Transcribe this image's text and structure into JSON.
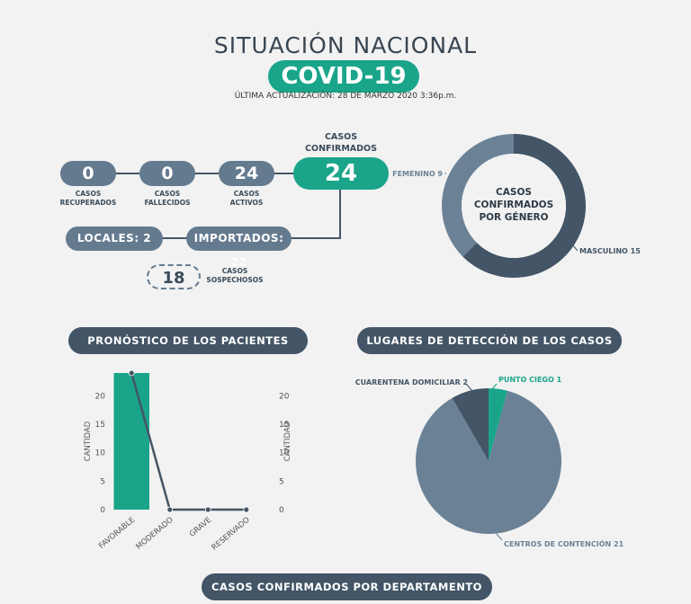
{
  "header": {
    "title": "SITUACIÓN NACIONAL",
    "badge": "COVID-19",
    "updated": "ÚLTIMA ACTUALIZACIÓN: 28 DE MARZO 2020 3:36p.m."
  },
  "stats": {
    "recuperados": {
      "value": "0",
      "label_1": "CASOS",
      "label_2": "RECUPERADOS"
    },
    "fallecidos": {
      "value": "0",
      "label_1": "CASOS",
      "label_2": "FALLECIDOS"
    },
    "activos": {
      "value": "24",
      "label_1": "CASOS",
      "label_2": "ACTIVOS"
    },
    "confirmados": {
      "value": "24",
      "label_1": "CASOS",
      "label_2": "CONFIRMADOS"
    },
    "locales": "LOCALES: 2",
    "importados": "IMPORTADOS: 22",
    "sospechosos": {
      "value": "18",
      "label_1": "CASOS",
      "label_2": "SOSPECHOSOS"
    }
  },
  "sections": {
    "pronostico": "PRONÓSTICO DE LOS PACIENTES",
    "lugares": "LUGARES DE DETECCIÓN DE LOS CASOS",
    "departamento": "CASOS CONFIRMADOS POR DEPARTAMENTO"
  },
  "colors": {
    "teal": "#1aa58a",
    "slate": "#647a8e",
    "dark": "#435566"
  },
  "chart_data": [
    {
      "type": "pie",
      "variant": "donut",
      "center_label": [
        "CASOS",
        "CONFIRMADOS",
        "POR GÉNERO"
      ],
      "labels": [
        "FEMENINO",
        "MASCULINO"
      ],
      "values": [
        9,
        15
      ],
      "slice_labels": [
        "FEMENINO 9",
        "MASCULINO 15"
      ],
      "colors": [
        "#6b8296",
        "#435566"
      ]
    },
    {
      "type": "bar",
      "combo_line": true,
      "categories": [
        "FAVORABLE",
        "MODERADO",
        "GRAVE",
        "RESERVADO"
      ],
      "values": [
        24,
        0,
        0,
        0
      ],
      "ylabel": "CANTIDAD",
      "ylabel_right": "CANTIDAD",
      "ylim": [
        0,
        24
      ],
      "yticks": [
        "0",
        "5",
        "10",
        "15",
        "20"
      ],
      "bar_color": "#1aa58a",
      "line_color": "#435566"
    },
    {
      "type": "pie",
      "labels": [
        "CENTROS DE CONTENCIÓN",
        "CUARENTENA DOMICILIAR",
        "PUNTO CIEGO"
      ],
      "values": [
        21,
        2,
        1
      ],
      "slice_labels": [
        "CENTROS DE CONTENCIÓN 21",
        "CUARENTENA DOMICILIAR 2",
        "PUNTO CIEGO 1"
      ],
      "colors": [
        "#6b8296",
        "#435566",
        "#1aa58a"
      ]
    }
  ]
}
